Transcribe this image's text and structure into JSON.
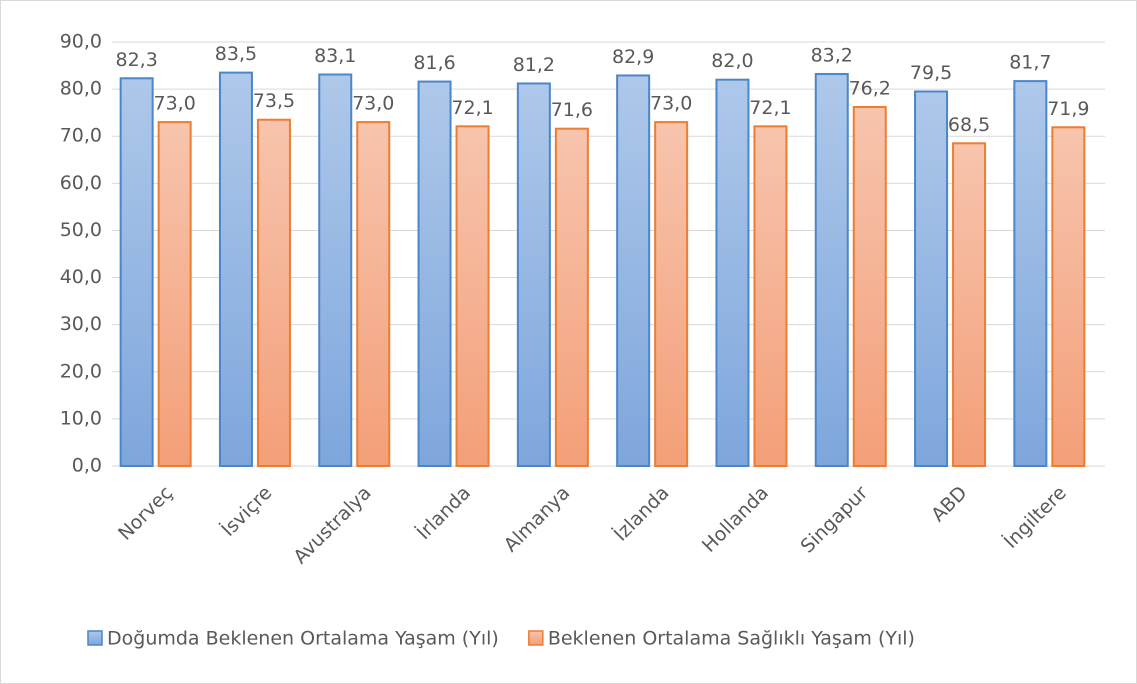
{
  "chart_data": {
    "type": "bar",
    "categories": [
      "Norveç",
      "İsviçre",
      "Avustralya",
      "İrlanda",
      "Almanya",
      "İzlanda",
      "Hollanda",
      "Singapur",
      "ABD",
      "İngiltere"
    ],
    "series": [
      {
        "name": "Doğumda Beklenen Ortalama Yaşam (Yıl)",
        "color": "#4a86c8",
        "values": [
          82.3,
          83.5,
          83.1,
          81.6,
          81.2,
          82.9,
          82.0,
          83.2,
          79.5,
          81.7
        ],
        "value_labels": [
          "82,3",
          "83,5",
          "83,1",
          "81,6",
          "81,2",
          "82,9",
          "82,0",
          "83,2",
          "79,5",
          "81,7"
        ]
      },
      {
        "name": "Beklenen Ortalama Sağlıklı Yaşam (Yıl)",
        "color": "#ed7d31",
        "values": [
          73.0,
          73.5,
          73.0,
          72.1,
          71.6,
          73.0,
          72.1,
          76.2,
          68.5,
          71.9
        ],
        "value_labels": [
          "73,0",
          "73,5",
          "73,0",
          "72,1",
          "71,6",
          "73,0",
          "72,1",
          "76,2",
          "68,5",
          "71,9"
        ]
      }
    ],
    "ylim": [
      0,
      90
    ],
    "yticks": [
      {
        "value": 0,
        "label": "0,0"
      },
      {
        "value": 10,
        "label": "10,0"
      },
      {
        "value": 20,
        "label": "20,0"
      },
      {
        "value": 30,
        "label": "30,0"
      },
      {
        "value": 40,
        "label": "40,0"
      },
      {
        "value": 50,
        "label": "50,0"
      },
      {
        "value": 60,
        "label": "60,0"
      },
      {
        "value": 70,
        "label": "70,0"
      },
      {
        "value": 80,
        "label": "80,0"
      },
      {
        "value": 90,
        "label": "90,0"
      }
    ],
    "grid": true,
    "legend": "bottom"
  }
}
